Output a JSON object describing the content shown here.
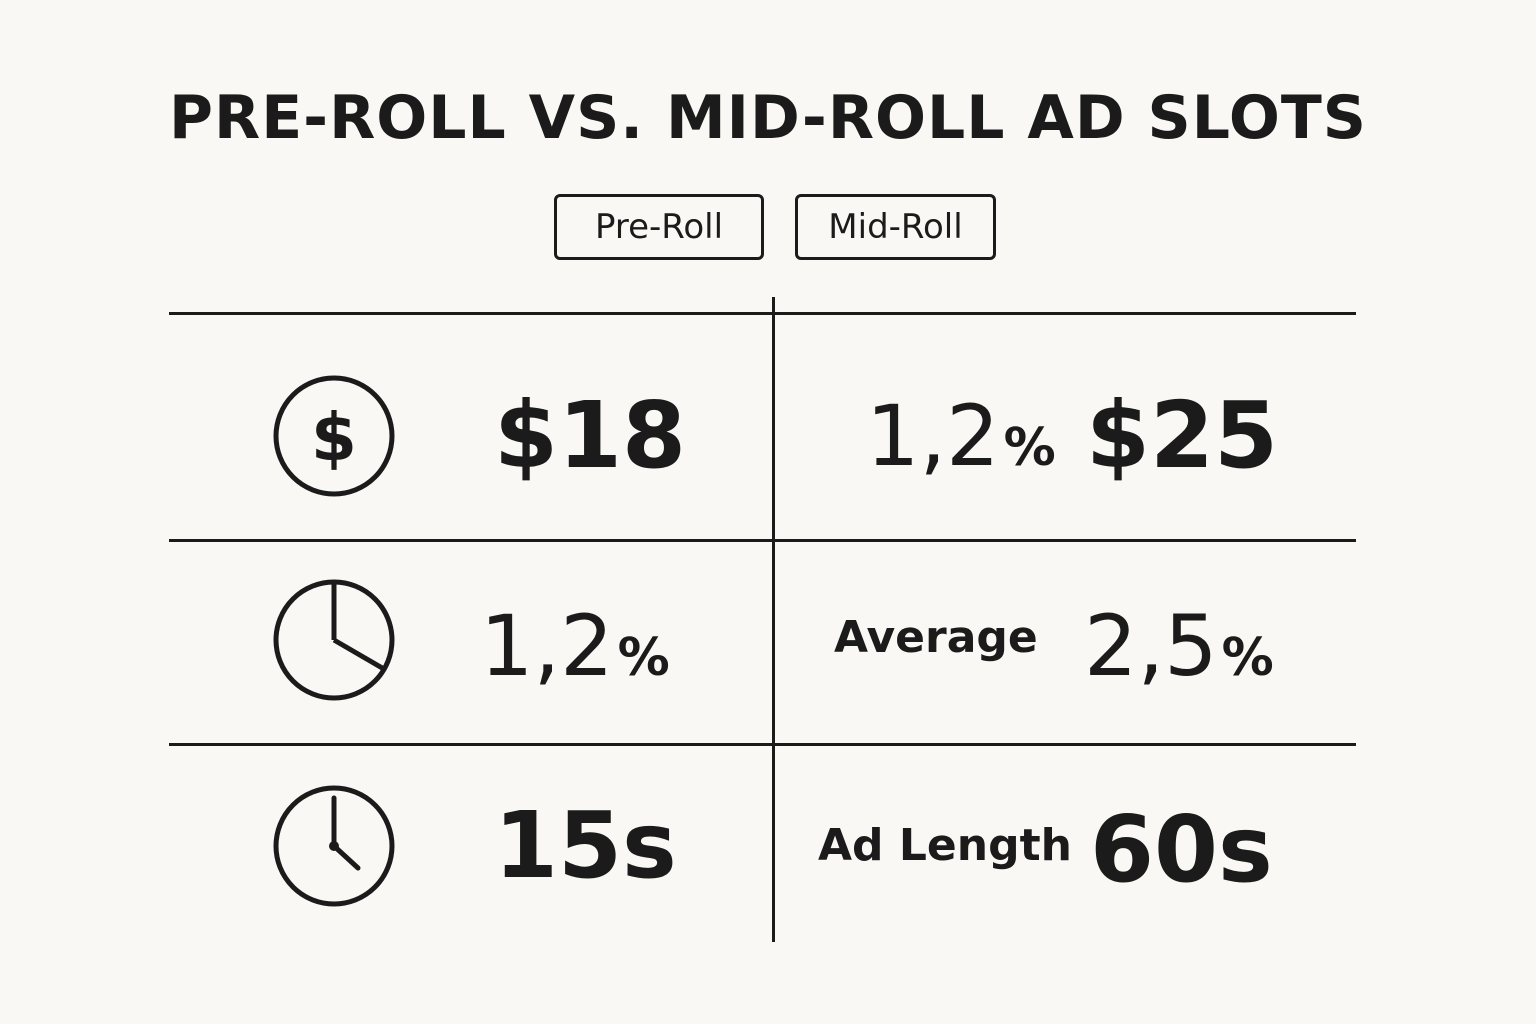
{
  "title": "PRE-ROLL VS. MID-ROLL AD SLOTS",
  "tabs": {
    "pre_roll": "Pre-Roll",
    "mid_roll": "Mid-Roll"
  },
  "rows": [
    {
      "icon": "dollar-icon",
      "pre_roll_value": "$18",
      "mid_roll_label_num": "1,2",
      "mid_roll_label_unit": "%",
      "mid_roll_value": "$25"
    },
    {
      "icon": "pie-chart-icon",
      "pre_roll_num": "1,2",
      "pre_roll_unit": "%",
      "mid_roll_label": "Average",
      "mid_roll_num": "2,5",
      "mid_roll_unit": "%"
    },
    {
      "icon": "clock-icon",
      "pre_roll_value": "15s",
      "mid_roll_label": "Ad Length",
      "mid_roll_value": "60s"
    }
  ]
}
